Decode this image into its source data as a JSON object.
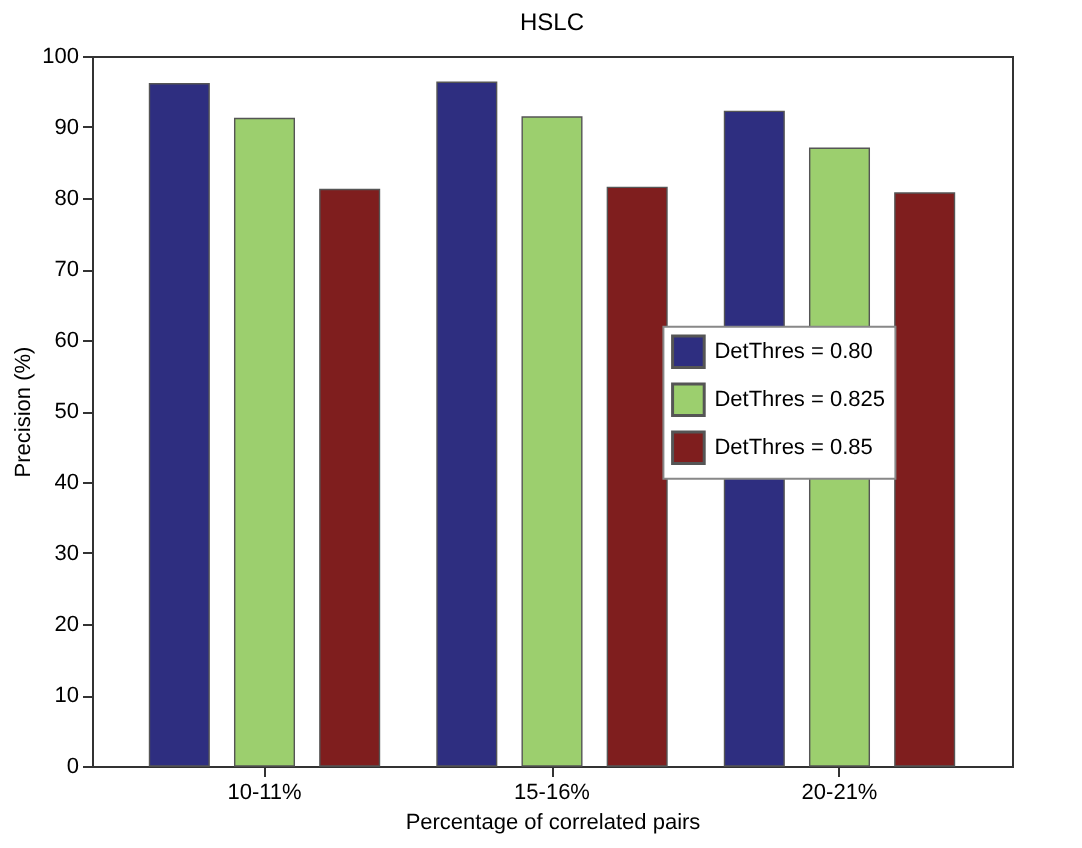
{
  "chart_data": {
    "type": "bar",
    "title": "HSLC",
    "xlabel": "Percentage of correlated pairs",
    "ylabel": "Precision (%)",
    "categories": [
      "10-11%",
      "15-16%",
      "20-21%"
    ],
    "series": [
      {
        "name": "DetThres = 0.80",
        "color": "#2e2e80",
        "values": [
          96.1,
          96.3,
          92.2
        ]
      },
      {
        "name": "DetThres = 0.825",
        "color": "#9ccf6e",
        "values": [
          91.2,
          91.4,
          87.0
        ]
      },
      {
        "name": "DetThres = 0.85",
        "color": "#7f1e1e",
        "values": [
          81.2,
          81.5,
          80.7
        ]
      }
    ],
    "ylim": [
      0,
      100
    ],
    "yticks": [
      0,
      10,
      20,
      30,
      40,
      50,
      60,
      70,
      80,
      90,
      100
    ],
    "grid": false,
    "legend": "right"
  }
}
